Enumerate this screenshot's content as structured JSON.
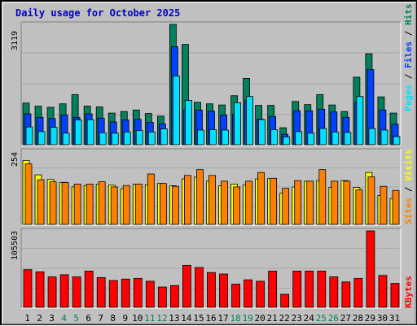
{
  "chart_title": "Daily usage for October 2025",
  "colors": {
    "background": "#c0c0c0",
    "title": "#0000c0",
    "hits": "#00805c",
    "files": "#0040ff",
    "pages": "#00e0ff",
    "visits": "#ffff00",
    "sites": "#ff8000",
    "kbytes": "#ff0000",
    "weekend_label": "#00805c",
    "weekday_label": "#000000"
  },
  "side_labels": {
    "pages": "Pages",
    "files": "Files",
    "hits": "Hits",
    "sites": "Sites",
    "visits": "Visits",
    "kbytes": "KBytes",
    "separator": " / "
  },
  "chart_data": [
    {
      "type": "bar",
      "panel": "hits-files-pages",
      "ymax_label": "3119",
      "ylim": [
        0,
        3119
      ],
      "categories": [
        "1",
        "2",
        "3",
        "4",
        "5",
        "6",
        "7",
        "8",
        "9",
        "10",
        "11",
        "12",
        "13",
        "14",
        "15",
        "16",
        "17",
        "18",
        "19",
        "20",
        "21",
        "22",
        "23",
        "24",
        "25",
        "26",
        "27",
        "28",
        "29",
        "30",
        "31"
      ],
      "weekend_days": [
        "4",
        "5",
        "11",
        "12",
        "18",
        "19",
        "25",
        "26"
      ],
      "series": [
        {
          "key": "hits",
          "values": [
            1080,
            1000,
            970,
            1060,
            1300,
            1000,
            980,
            820,
            860,
            900,
            810,
            740,
            3119,
            2600,
            1100,
            1060,
            1030,
            1270,
            1720,
            1020,
            1020,
            440,
            1120,
            1040,
            1300,
            1030,
            860,
            1750,
            2360,
            1240,
            820
          ]
        },
        {
          "key": "files",
          "values": [
            800,
            710,
            680,
            770,
            710,
            800,
            690,
            590,
            640,
            660,
            580,
            540,
            2540,
            900,
            900,
            870,
            770,
            790,
            1150,
            660,
            730,
            270,
            880,
            880,
            920,
            850,
            710,
            1100,
            1950,
            900,
            530
          ]
        },
        {
          "key": "pages",
          "values": [
            460,
            340,
            450,
            300,
            640,
            650,
            310,
            300,
            330,
            370,
            330,
            410,
            1780,
            1150,
            380,
            390,
            380,
            1090,
            1250,
            650,
            390,
            200,
            340,
            300,
            420,
            330,
            320,
            1250,
            420,
            380,
            210
          ]
        }
      ]
    },
    {
      "type": "bar",
      "panel": "visits-sites",
      "ymax_label": "254",
      "ylim": [
        0,
        254
      ],
      "categories": [
        "1",
        "2",
        "3",
        "4",
        "5",
        "6",
        "7",
        "8",
        "9",
        "10",
        "11",
        "12",
        "13",
        "14",
        "15",
        "16",
        "17",
        "18",
        "19",
        "20",
        "21",
        "22",
        "23",
        "24",
        "25",
        "26",
        "27",
        "28",
        "29",
        "30",
        "31"
      ],
      "series": [
        {
          "key": "visits",
          "values": [
            222,
            172,
            156,
            146,
            130,
            135,
            140,
            136,
            124,
            140,
            138,
            142,
            134,
            158,
            164,
            150,
            134,
            140,
            138,
            158,
            160,
            108,
            130,
            150,
            152,
            128,
            152,
            128,
            180,
            100,
            90
          ]
        },
        {
          "key": "sites",
          "values": [
            210,
            155,
            148,
            145,
            140,
            140,
            148,
            130,
            135,
            140,
            175,
            142,
            132,
            170,
            190,
            170,
            150,
            130,
            150,
            180,
            160,
            125,
            152,
            150,
            190,
            150,
            150,
            120,
            165,
            132,
            118
          ]
        }
      ]
    },
    {
      "type": "bar",
      "panel": "kbytes",
      "ymax_label": "105503",
      "ylim": [
        0,
        105503
      ],
      "categories": [
        "1",
        "2",
        "3",
        "4",
        "5",
        "6",
        "7",
        "8",
        "9",
        "10",
        "11",
        "12",
        "13",
        "14",
        "15",
        "16",
        "17",
        "18",
        "19",
        "20",
        "21",
        "22",
        "23",
        "24",
        "25",
        "26",
        "27",
        "28",
        "29",
        "30",
        "31"
      ],
      "series": [
        {
          "key": "kbytes",
          "values": [
            52000,
            49000,
            42000,
            45000,
            42000,
            50000,
            41000,
            37000,
            39000,
            40000,
            36000,
            28000,
            30000,
            58000,
            55000,
            48000,
            46000,
            32000,
            38000,
            36000,
            50000,
            18000,
            50000,
            50000,
            50000,
            42000,
            35000,
            40000,
            105503,
            44000,
            33000
          ]
        }
      ]
    }
  ]
}
